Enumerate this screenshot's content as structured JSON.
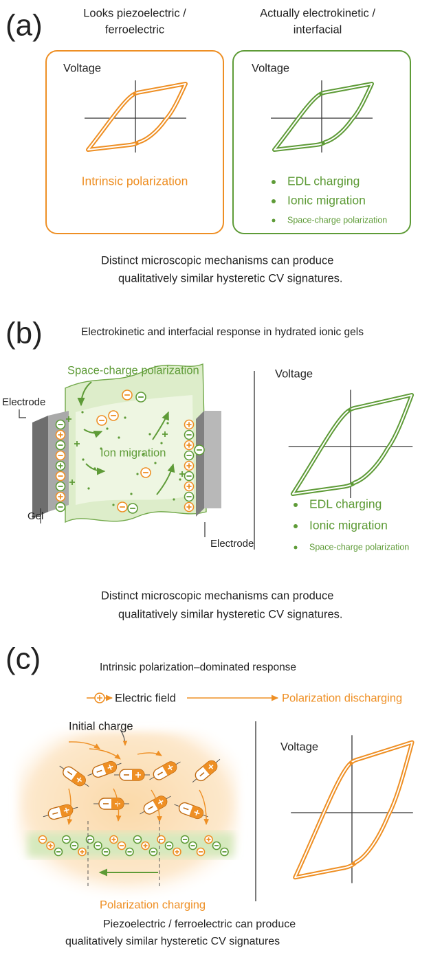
{
  "panel_a": {
    "label": "(a)",
    "left_heading": [
      "Looks piezoelectric /",
      "ferroelectric"
    ],
    "right_heading": [
      "Actually electrokinetic /",
      "interfacial"
    ],
    "left_plot": {
      "axis_label": "Voltage",
      "caption": "Intrinsic polarization"
    },
    "right_plot": {
      "axis_label": "Voltage",
      "bullets": [
        "EDL charging",
        "Ionic migration",
        "Space-charge polarization"
      ]
    },
    "caption": [
      "Distinct microscopic mechanisms can produce",
      "qualitatively similar hysteretic CV signatures."
    ]
  },
  "panel_b": {
    "label": "(b)",
    "title": "Electrokinetic and interfacial response in hydrated ionic gels",
    "diagram": {
      "space_charge": "Space-charge polarization",
      "electrode_left": "Electrode",
      "ion_migration": "Ion migration",
      "gel": "Gel",
      "electrode_right": "Electrode"
    },
    "plot": {
      "axis_label": "Voltage",
      "bullets": [
        "EDL charging",
        "Ionic migration",
        "Space-charge polarization"
      ]
    },
    "caption": [
      "Distinct microscopic mechanisms can produce",
      "qualitatively similar hysteretic CV signatures."
    ]
  },
  "panel_c": {
    "label": "(c)",
    "title": "Intrinsic polarization–dominated response",
    "legend": {
      "field": "Electric field",
      "discharging": "Polarization discharging"
    },
    "diagram": {
      "initial_charge": "Initial charge",
      "charging": "Polarization charging"
    },
    "plot": {
      "axis_label": "Voltage"
    },
    "caption": [
      "Piezoelectric / ferroelectric can produce",
      "qualitatively similar hysteretic CV signatures"
    ]
  }
}
